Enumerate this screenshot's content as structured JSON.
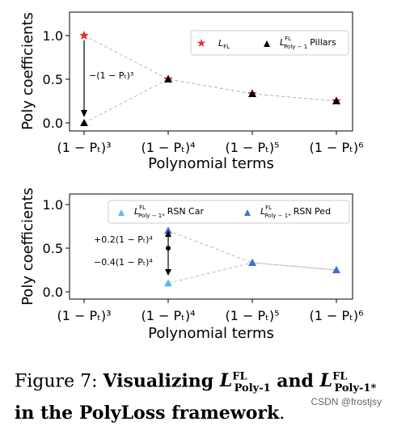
{
  "chart_data": [
    {
      "type": "scatter",
      "categories": [
        "(1 − Pₜ)³",
        "(1 − Pₜ)⁴",
        "(1 − Pₜ)⁵",
        "(1 − Pₜ)⁶"
      ],
      "xlabel": "Polynomial terms",
      "ylabel": "Poly coefficients",
      "ylim": [
        0,
        1
      ],
      "yticks": [
        "0.0",
        "0.5",
        "1.0"
      ],
      "series": [
        {
          "name": "L_FL",
          "marker": "star",
          "color": "#e8302a",
          "values": [
            1.0,
            0.5,
            0.333,
            0.25
          ]
        },
        {
          "name": "L^FL_Poly-1 Pillars",
          "marker": "triangle",
          "color": "#000000",
          "values": [
            0.0,
            0.5,
            0.333,
            0.25
          ]
        }
      ],
      "annotation": "−(1 − Pₜ)³",
      "legend_location": "top-right"
    },
    {
      "type": "scatter",
      "categories": [
        "(1 − Pₜ)³",
        "(1 − Pₜ)⁴",
        "(1 − Pₜ)⁵",
        "(1 − Pₜ)⁶"
      ],
      "xlabel": "Polynomial terms",
      "ylabel": "Poly coefficients",
      "ylim": [
        0,
        1
      ],
      "yticks": [
        "0.0",
        "0.5",
        "1.0"
      ],
      "series": [
        {
          "name": "L^FL_Poly-1* RSN Car",
          "marker": "triangle",
          "color": "#5bb8f5",
          "x_index": [
            1,
            2,
            3
          ],
          "values": [
            0.1,
            0.333,
            0.25
          ]
        },
        {
          "name": "L^FL_Poly-1* RSN Ped",
          "marker": "triangle",
          "color": "#3e6fd9",
          "x_index": [
            1,
            2,
            3
          ],
          "values": [
            0.7,
            0.333,
            0.25
          ]
        }
      ],
      "annotations": [
        "+0.2(1 − Pₜ)⁴",
        "−0.4(1 − Pₜ)⁴"
      ],
      "legend_location": "top-right"
    }
  ],
  "legend1": {
    "fl_label": "L",
    "fl_sup": "FL",
    "fl_sub": "FL",
    "p1_label": "L",
    "p1_sup": "FL",
    "p1_sub": "Poly − 1",
    "p1_suffix": "Pillars"
  },
  "legend2": {
    "car_label": "L",
    "car_sup": "FL",
    "car_sub": "Poly − 1*",
    "car_suffix": "RSN Car",
    "ped_label": "L",
    "ped_sup": "FL",
    "ped_sub": "Poly − 1*",
    "ped_suffix": "RSN Ped"
  },
  "caption": {
    "prefix": "Figure 7: ",
    "bold1": "Visualizing ",
    "l1": "L",
    "l1_sup": "FL",
    "l1_sub": "Poly-1",
    "and": " and ",
    "l2": "L",
    "l2_sup": "FL",
    "l2_sub": "Poly-1*",
    "bold2": "in the PolyLoss framework",
    "end": "."
  },
  "watermark": "CSDN @frostjsy"
}
